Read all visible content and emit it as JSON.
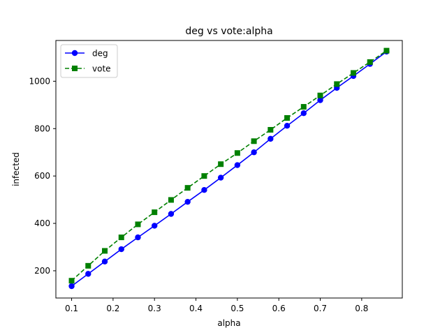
{
  "chart_data": {
    "type": "line",
    "title": "deg vs vote:alpha",
    "xlabel": "alpha",
    "ylabel": "infected",
    "xlim": [
      0.062,
      0.898
    ],
    "ylim": [
      85,
      1172
    ],
    "xticks": [
      0.1,
      0.2,
      0.3,
      0.4,
      0.5,
      0.6,
      0.7,
      0.8
    ],
    "xtick_labels": [
      "0.1",
      "0.2",
      "0.3",
      "0.4",
      "0.5",
      "0.6",
      "0.7",
      "0.8"
    ],
    "yticks": [
      200,
      400,
      600,
      800,
      1000
    ],
    "ytick_labels": [
      "200",
      "400",
      "600",
      "800",
      "1000"
    ],
    "grid": false,
    "legend_position": "top-left",
    "x": [
      0.1,
      0.14,
      0.18,
      0.22,
      0.26,
      0.3,
      0.34,
      0.38,
      0.42,
      0.46,
      0.5,
      0.54,
      0.58,
      0.62,
      0.66,
      0.7,
      0.74,
      0.78,
      0.82,
      0.86
    ],
    "series": [
      {
        "name": "deg",
        "color": "#0000ff",
        "marker": "circle",
        "linestyle": "solid",
        "values": [
          135,
          187,
          239,
          291,
          341,
          390,
          440,
          491,
          541,
          593,
          646,
          700,
          757,
          812,
          865,
          920,
          972,
          1022,
          1073,
          1125
        ]
      },
      {
        "name": "vote",
        "color": "#008000",
        "marker": "square",
        "linestyle": "dashed",
        "values": [
          158,
          221,
          284,
          341,
          396,
          447,
          499,
          550,
          600,
          650,
          697,
          747,
          795,
          845,
          892,
          940,
          988,
          1035,
          1081,
          1129
        ]
      }
    ]
  }
}
